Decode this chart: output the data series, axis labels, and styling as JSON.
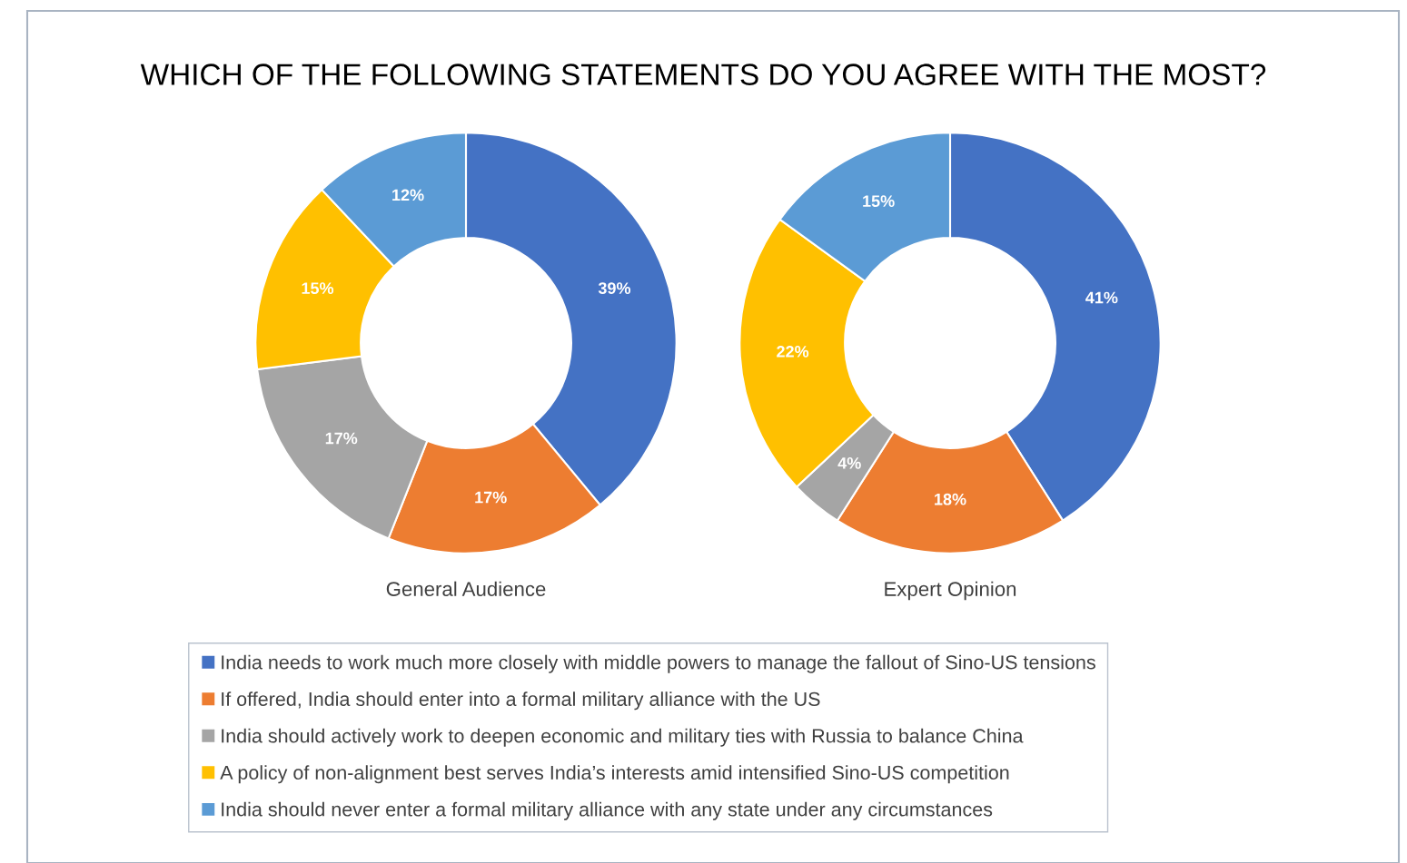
{
  "chart_data": [
    {
      "type": "donut",
      "title": "WHICH OF THE FOLLOWING STATEMENTS DO YOU AGREE WITH THE MOST?",
      "xlabel": "General Audience",
      "categories": [
        "India needs to work much more closely with middle powers to manage the fallout of Sino-US tensions",
        "If offered, India should enter into a formal military alliance with the US",
        "India should actively work to deepen economic and military ties with Russia to balance China",
        "A policy of non-alignment best serves India’s interests amid intensified Sino-US competition",
        "India should never enter a formal military alliance with any state under any circumstances"
      ],
      "values": [
        39,
        17,
        17,
        15,
        12
      ],
      "value_labels": [
        "39%",
        "17%",
        "17%",
        "15%",
        "12%"
      ],
      "colors": [
        "#4472c4",
        "#ed7d31",
        "#a5a5a5",
        "#ffc000",
        "#5b9bd5"
      ],
      "legend": "bottom"
    },
    {
      "type": "donut",
      "xlabel": "Expert Opinion",
      "categories": [
        null,
        null,
        null,
        null,
        null
      ],
      "values": [
        41,
        18,
        4,
        22,
        15
      ],
      "value_labels": [
        "41%",
        "18%",
        "4%",
        "22%",
        "15%"
      ],
      "colors": [
        "#4472c4",
        "#ed7d31",
        "#a5a5a5",
        "#ffc000",
        "#5b9bd5"
      ]
    }
  ]
}
